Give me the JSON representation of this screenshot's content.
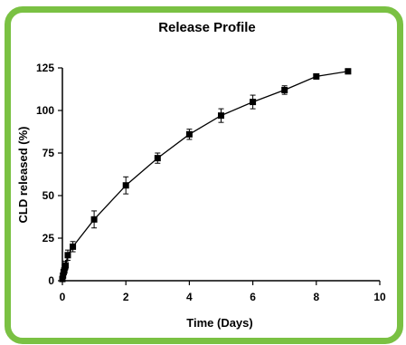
{
  "chart_data": {
    "type": "scatter",
    "title": "Release Profile",
    "xlabel": "Time (Days)",
    "ylabel": "CLD released (%)",
    "xlim": [
      0,
      10
    ],
    "ylim": [
      0,
      125
    ],
    "xticks": [
      0,
      2,
      4,
      6,
      8,
      10
    ],
    "yticks": [
      0,
      25,
      50,
      75,
      100,
      125
    ],
    "grid": false,
    "legend": "none",
    "series": [
      {
        "x": [
          0,
          0.02,
          0.04,
          0.06,
          0.08,
          0.1,
          0.17,
          0.33,
          1,
          2,
          3,
          4,
          5,
          6,
          7,
          8,
          9
        ],
        "y": [
          1,
          3,
          5,
          6,
          8,
          9,
          15,
          20,
          36,
          56,
          72,
          86,
          97,
          105,
          112,
          120,
          123
        ],
        "error": [
          0.5,
          1,
          1,
          1.5,
          2,
          2.5,
          3,
          3,
          5,
          5,
          3,
          3,
          4,
          4,
          2.5,
          1.5,
          1.5
        ]
      }
    ],
    "color": "#000000",
    "frame_color": "#7ac143"
  }
}
